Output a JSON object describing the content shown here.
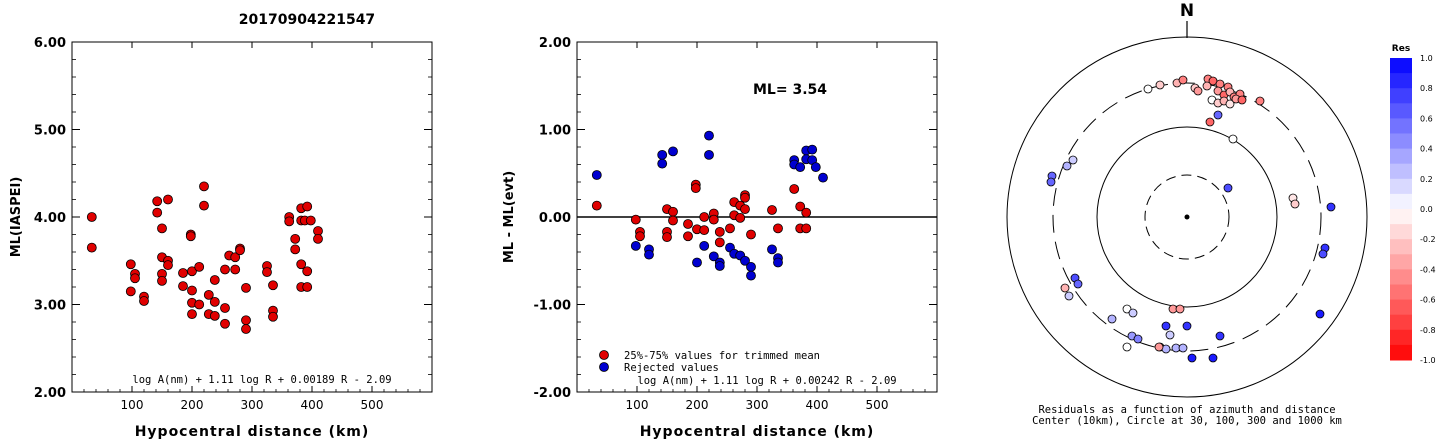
{
  "title": "20170904221547",
  "chart_data": [
    {
      "type": "scatter",
      "ylabel": "ML(IASPEI)",
      "xlabel": "Hypocentral distance (km)",
      "xlim": [
        0,
        600
      ],
      "ylim": [
        2.0,
        6.0
      ],
      "xticks": [
        "100",
        "200",
        "300",
        "400",
        "500"
      ],
      "yticks": [
        "2.00",
        "3.00",
        "4.00",
        "5.00",
        "6.00"
      ],
      "formula": "log A(nm) + 1.11 log R + 0.00189 R - 2.09",
      "points": [
        [
          33,
          4.0
        ],
        [
          33,
          3.65
        ],
        [
          98,
          3.46
        ],
        [
          98,
          3.15
        ],
        [
          105,
          3.35
        ],
        [
          105,
          3.3
        ],
        [
          120,
          3.09
        ],
        [
          120,
          3.04
        ],
        [
          142,
          4.18
        ],
        [
          142,
          4.05
        ],
        [
          150,
          3.87
        ],
        [
          150,
          3.54
        ],
        [
          150,
          3.35
        ],
        [
          150,
          3.27
        ],
        [
          160,
          4.2
        ],
        [
          160,
          3.5
        ],
        [
          160,
          3.45
        ],
        [
          185,
          3.36
        ],
        [
          185,
          3.21
        ],
        [
          198,
          3.8
        ],
        [
          198,
          3.78
        ],
        [
          200,
          3.38
        ],
        [
          200,
          3.16
        ],
        [
          200,
          3.02
        ],
        [
          200,
          2.89
        ],
        [
          212,
          3.43
        ],
        [
          212,
          3.0
        ],
        [
          220,
          4.35
        ],
        [
          220,
          4.13
        ],
        [
          228,
          3.11
        ],
        [
          228,
          2.89
        ],
        [
          238,
          3.28
        ],
        [
          238,
          3.03
        ],
        [
          238,
          2.87
        ],
        [
          255,
          3.4
        ],
        [
          255,
          2.96
        ],
        [
          255,
          2.78
        ],
        [
          262,
          3.56
        ],
        [
          272,
          3.54
        ],
        [
          272,
          3.4
        ],
        [
          280,
          3.64
        ],
        [
          280,
          3.62
        ],
        [
          290,
          3.19
        ],
        [
          290,
          2.82
        ],
        [
          290,
          2.72
        ],
        [
          325,
          3.44
        ],
        [
          325,
          3.37
        ],
        [
          335,
          3.22
        ],
        [
          335,
          2.93
        ],
        [
          335,
          2.86
        ],
        [
          362,
          4.0
        ],
        [
          362,
          3.95
        ],
        [
          372,
          3.75
        ],
        [
          372,
          3.63
        ],
        [
          382,
          4.1
        ],
        [
          382,
          3.96
        ],
        [
          382,
          3.46
        ],
        [
          382,
          3.2
        ],
        [
          388,
          3.96
        ],
        [
          392,
          4.12
        ],
        [
          392,
          3.38
        ],
        [
          392,
          3.2
        ],
        [
          398,
          3.96
        ],
        [
          410,
          3.84
        ],
        [
          410,
          3.75
        ]
      ]
    },
    {
      "type": "scatter",
      "ylabel": "ML - ML(evt)",
      "xlabel": "Hypocentral distance (km)",
      "xlim": [
        0,
        600
      ],
      "ylim": [
        -2.0,
        2.0
      ],
      "xticks": [
        "100",
        "200",
        "300",
        "400",
        "500"
      ],
      "yticks": [
        "-2.00",
        "-1.00",
        "0.00",
        "1.00",
        "2.00"
      ],
      "ml_label": "ML= 3.54",
      "formula": "log A(nm) + 1.11 log R + 0.00242 R - 2.09",
      "legend": [
        "25%-75% values for trimmed mean",
        "Rejected values"
      ],
      "colors": {
        "kept": "#e00000",
        "rejected": "#0000d0"
      },
      "series": [
        {
          "name": "25%-75% values for trimmed mean",
          "points": [
            [
              33,
              0.13
            ],
            [
              98,
              -0.03
            ],
            [
              105,
              -0.17
            ],
            [
              105,
              -0.22
            ],
            [
              150,
              0.09
            ],
            [
              150,
              -0.17
            ],
            [
              150,
              -0.23
            ],
            [
              160,
              0.06
            ],
            [
              160,
              -0.04
            ],
            [
              185,
              -0.08
            ],
            [
              185,
              -0.22
            ],
            [
              198,
              0.37
            ],
            [
              198,
              0.33
            ],
            [
              200,
              -0.14
            ],
            [
              212,
              0.0
            ],
            [
              212,
              -0.15
            ],
            [
              228,
              0.04
            ],
            [
              228,
              -0.03
            ],
            [
              238,
              -0.17
            ],
            [
              238,
              -0.29
            ],
            [
              255,
              -0.13
            ],
            [
              262,
              0.17
            ],
            [
              262,
              0.02
            ],
            [
              272,
              -0.01
            ],
            [
              272,
              0.13
            ],
            [
              280,
              0.25
            ],
            [
              280,
              0.22
            ],
            [
              280,
              0.09
            ],
            [
              290,
              -0.2
            ],
            [
              325,
              0.08
            ],
            [
              335,
              -0.13
            ],
            [
              362,
              0.32
            ],
            [
              372,
              0.12
            ],
            [
              372,
              -0.13
            ],
            [
              382,
              0.05
            ],
            [
              382,
              -0.13
            ]
          ]
        },
        {
          "name": "Rejected values",
          "points": [
            [
              33,
              0.48
            ],
            [
              98,
              -0.33
            ],
            [
              120,
              -0.37
            ],
            [
              120,
              -0.43
            ],
            [
              142,
              0.71
            ],
            [
              142,
              0.61
            ],
            [
              160,
              0.75
            ],
            [
              200,
              -0.52
            ],
            [
              212,
              -0.33
            ],
            [
              220,
              0.93
            ],
            [
              220,
              0.71
            ],
            [
              228,
              -0.45
            ],
            [
              238,
              -0.52
            ],
            [
              238,
              -0.56
            ],
            [
              255,
              -0.35
            ],
            [
              262,
              -0.42
            ],
            [
              272,
              -0.44
            ],
            [
              280,
              -0.5
            ],
            [
              290,
              -0.57
            ],
            [
              290,
              -0.67
            ],
            [
              325,
              -0.37
            ],
            [
              335,
              -0.47
            ],
            [
              335,
              -0.52
            ],
            [
              362,
              0.65
            ],
            [
              362,
              0.6
            ],
            [
              372,
              0.57
            ],
            [
              382,
              0.76
            ],
            [
              382,
              0.66
            ],
            [
              392,
              0.77
            ],
            [
              392,
              0.65
            ],
            [
              398,
              0.57
            ],
            [
              410,
              0.45
            ]
          ]
        }
      ]
    },
    {
      "type": "polar-scatter",
      "north_label": "N",
      "caption_line1": "Residuals as a function of azimuth and distance",
      "caption_line2": "Center (10km), Circle at 30, 100, 300 and 1000 km",
      "colorbar_title": "Res",
      "colorbar_ticks": [
        "1.0",
        "0.8",
        "0.6",
        "0.4",
        "0.2",
        "0.0",
        "-0.2",
        "-0.4",
        "-0.6",
        "-0.8",
        "-1.0"
      ],
      "points": [
        [
          1208,
          79,
          -0.5
        ],
        [
          1213,
          81,
          -0.6
        ],
        [
          1207,
          86,
          -0.3
        ],
        [
          1195,
          88,
          -0.2
        ],
        [
          1198,
          91,
          -0.4
        ],
        [
          1220,
          84,
          -0.5
        ],
        [
          1228,
          87,
          -0.5
        ],
        [
          1218,
          91,
          -0.4
        ],
        [
          1224,
          95,
          -0.6
        ],
        [
          1230,
          92,
          -0.3
        ],
        [
          1234,
          97,
          -0.5
        ],
        [
          1240,
          94,
          -0.5
        ],
        [
          1212,
          100,
          0.0
        ],
        [
          1218,
          103,
          -0.2
        ],
        [
          1224,
          101,
          -0.3
        ],
        [
          1230,
          104,
          -0.1
        ],
        [
          1236,
          99,
          -0.4
        ],
        [
          1242,
          100,
          -0.6
        ],
        [
          1260,
          101,
          -0.5
        ],
        [
          1148,
          89,
          0.0
        ],
        [
          1160,
          85,
          -0.2
        ],
        [
          1177,
          83,
          -0.3
        ],
        [
          1183,
          80,
          -0.5
        ],
        [
          1218,
          115,
          0.6
        ],
        [
          1210,
          122,
          -0.6
        ],
        [
          1233,
          139,
          0.0
        ],
        [
          1228,
          188,
          0.7
        ],
        [
          1073,
          160,
          0.2
        ],
        [
          1067,
          166,
          0.3
        ],
        [
          1052,
          176,
          0.6
        ],
        [
          1051,
          182,
          0.6
        ],
        [
          1293,
          198,
          -0.1
        ],
        [
          1295,
          204,
          -0.2
        ],
        [
          1331,
          207,
          0.8
        ],
        [
          1325,
          248,
          0.8
        ],
        [
          1323,
          254,
          0.7
        ],
        [
          1075,
          278,
          0.7
        ],
        [
          1078,
          284,
          0.6
        ],
        [
          1065,
          288,
          -0.3
        ],
        [
          1069,
          296,
          0.2
        ],
        [
          1127,
          309,
          0.0
        ],
        [
          1133,
          313,
          0.2
        ],
        [
          1112,
          319,
          0.3
        ],
        [
          1173,
          309,
          -0.4
        ],
        [
          1180,
          309,
          -0.4
        ],
        [
          1166,
          326,
          0.8
        ],
        [
          1187,
          326,
          0.8
        ],
        [
          1220,
          336,
          0.8
        ],
        [
          1320,
          314,
          0.9
        ],
        [
          1132,
          336,
          0.4
        ],
        [
          1138,
          339,
          0.5
        ],
        [
          1127,
          347,
          0.0
        ],
        [
          1160,
          347,
          -0.3
        ],
        [
          1166,
          349,
          0.3
        ],
        [
          1176,
          348,
          0.3
        ],
        [
          1183,
          348,
          0.3
        ],
        [
          1192,
          358,
          0.9
        ],
        [
          1213,
          358,
          0.9
        ],
        [
          1170,
          335,
          0.2
        ],
        [
          1159,
          347,
          -0.4
        ]
      ]
    }
  ]
}
